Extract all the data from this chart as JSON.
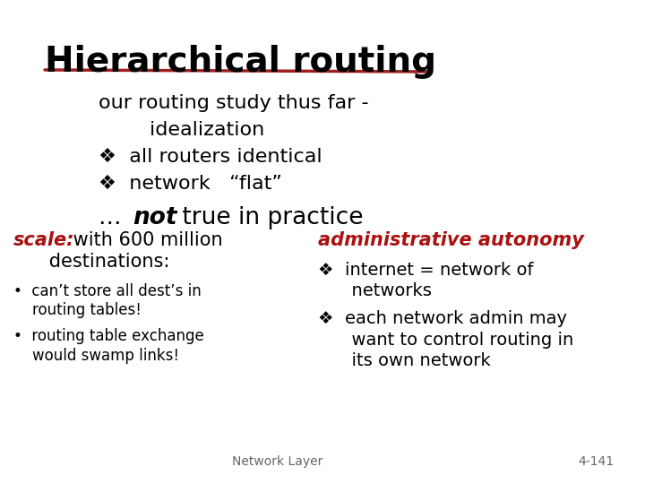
{
  "title": "Hierarchical routing",
  "title_color": "#000000",
  "title_underline_color": "#a02020",
  "background_color": "#ffffff",
  "line1": "our routing study thus far -",
  "line2": "        idealization",
  "bullet1": "❖  all routers identical",
  "bullet2": "❖  network   “flat”",
  "line3_pre": "... ",
  "line3_italic": "not",
  "line3_post": " true in practice",
  "scale_label": "scale:",
  "scale_rest": " with 600 million",
  "scale_line2": "      destinations:",
  "scale_bullet1a": "•  can’t store all dest’s in",
  "scale_bullet1b": "    routing tables!",
  "scale_bullet2a": "•  routing table exchange",
  "scale_bullet2b": "    would swamp links!",
  "admin_label": "administrative autonomy",
  "admin_bullet1a": "❖  internet = network of",
  "admin_bullet1b": "      networks",
  "admin_bullet2a": "❖  each network admin may",
  "admin_bullet2b": "      want to control routing in",
  "admin_bullet2c": "      its own network",
  "footer_left": "Network Layer",
  "footer_right": "4-141",
  "red_color": "#aa1111",
  "black_color": "#000000",
  "footer_color": "#666666"
}
